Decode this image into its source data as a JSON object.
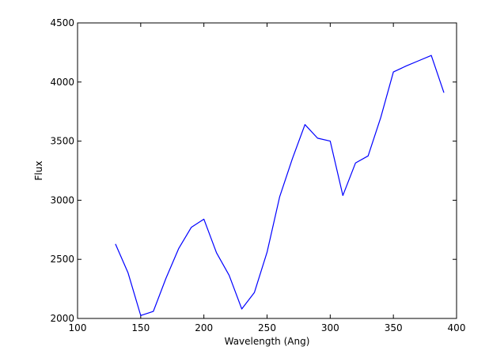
{
  "chart_data": {
    "type": "line",
    "title": "",
    "xlabel": "Wavelength (Ang)",
    "ylabel": "Flux",
    "xlim": [
      100,
      400
    ],
    "ylim": [
      2000,
      4500
    ],
    "xticks": [
      100,
      150,
      200,
      250,
      300,
      350,
      400
    ],
    "yticks": [
      2000,
      2500,
      3000,
      3500,
      4000,
      4500
    ],
    "grid": false,
    "legend": "none",
    "series": [
      {
        "color": "#0000ff",
        "x": [
          130,
          140,
          150,
          160,
          170,
          180,
          190,
          200,
          210,
          220,
          230,
          240,
          250,
          260,
          270,
          280,
          290,
          300,
          310,
          320,
          330,
          340,
          350,
          360,
          370,
          380,
          390
        ],
        "y": [
          2630,
          2385,
          2025,
          2060,
          2340,
          2590,
          2770,
          2840,
          2555,
          2365,
          2080,
          2220,
          2560,
          3030,
          3350,
          3640,
          3525,
          3500,
          3040,
          3315,
          3375,
          3700,
          4085,
          4135,
          4180,
          4225,
          3910
        ]
      }
    ]
  }
}
